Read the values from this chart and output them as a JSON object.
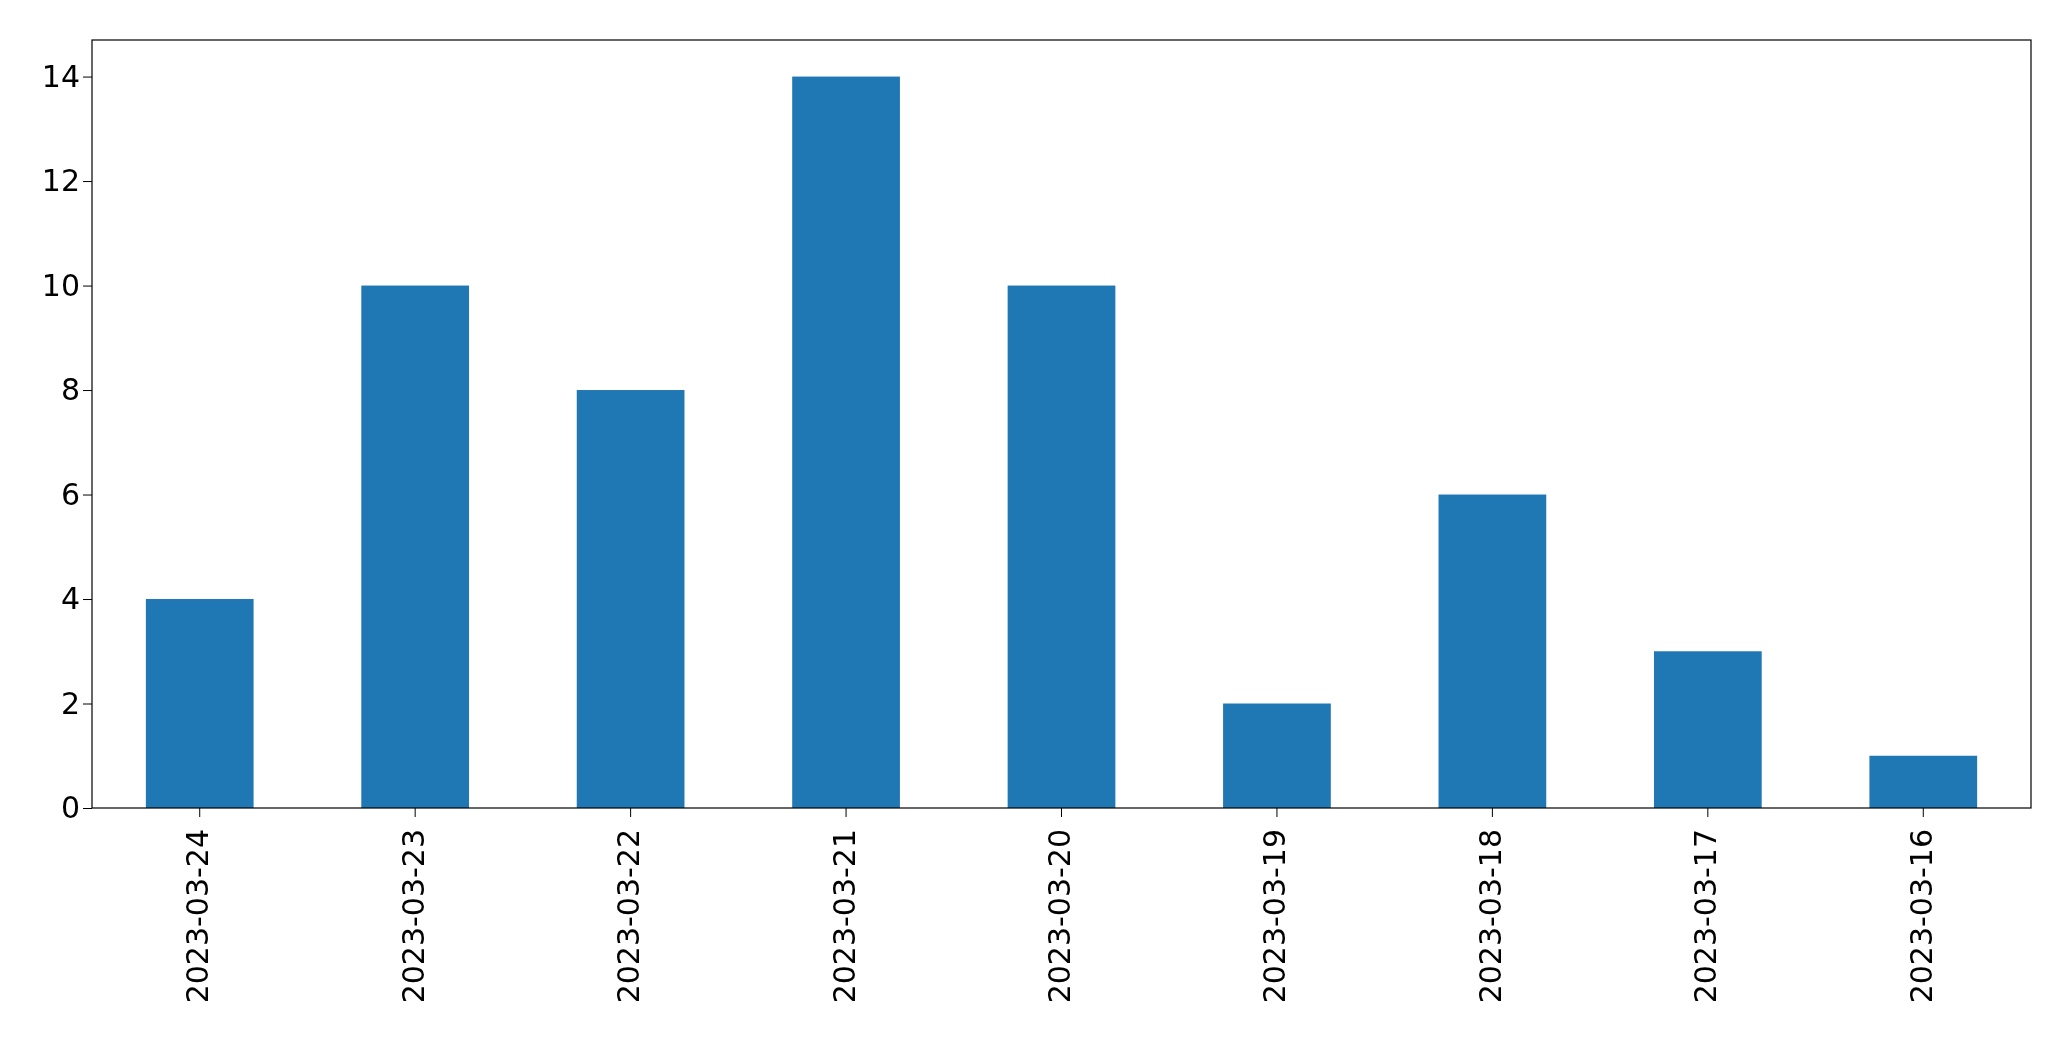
{
  "chart_data": {
    "type": "bar",
    "categories": [
      "2023-03-24",
      "2023-03-23",
      "2023-03-22",
      "2023-03-21",
      "2023-03-20",
      "2023-03-19",
      "2023-03-18",
      "2023-03-17",
      "2023-03-16"
    ],
    "values": [
      4,
      10,
      8,
      14,
      10,
      2,
      6,
      3,
      1
    ],
    "color": "#1f77b4",
    "ylim": [
      0,
      14.7
    ],
    "yticks": [
      0,
      2,
      4,
      6,
      8,
      10,
      12,
      14
    ]
  }
}
